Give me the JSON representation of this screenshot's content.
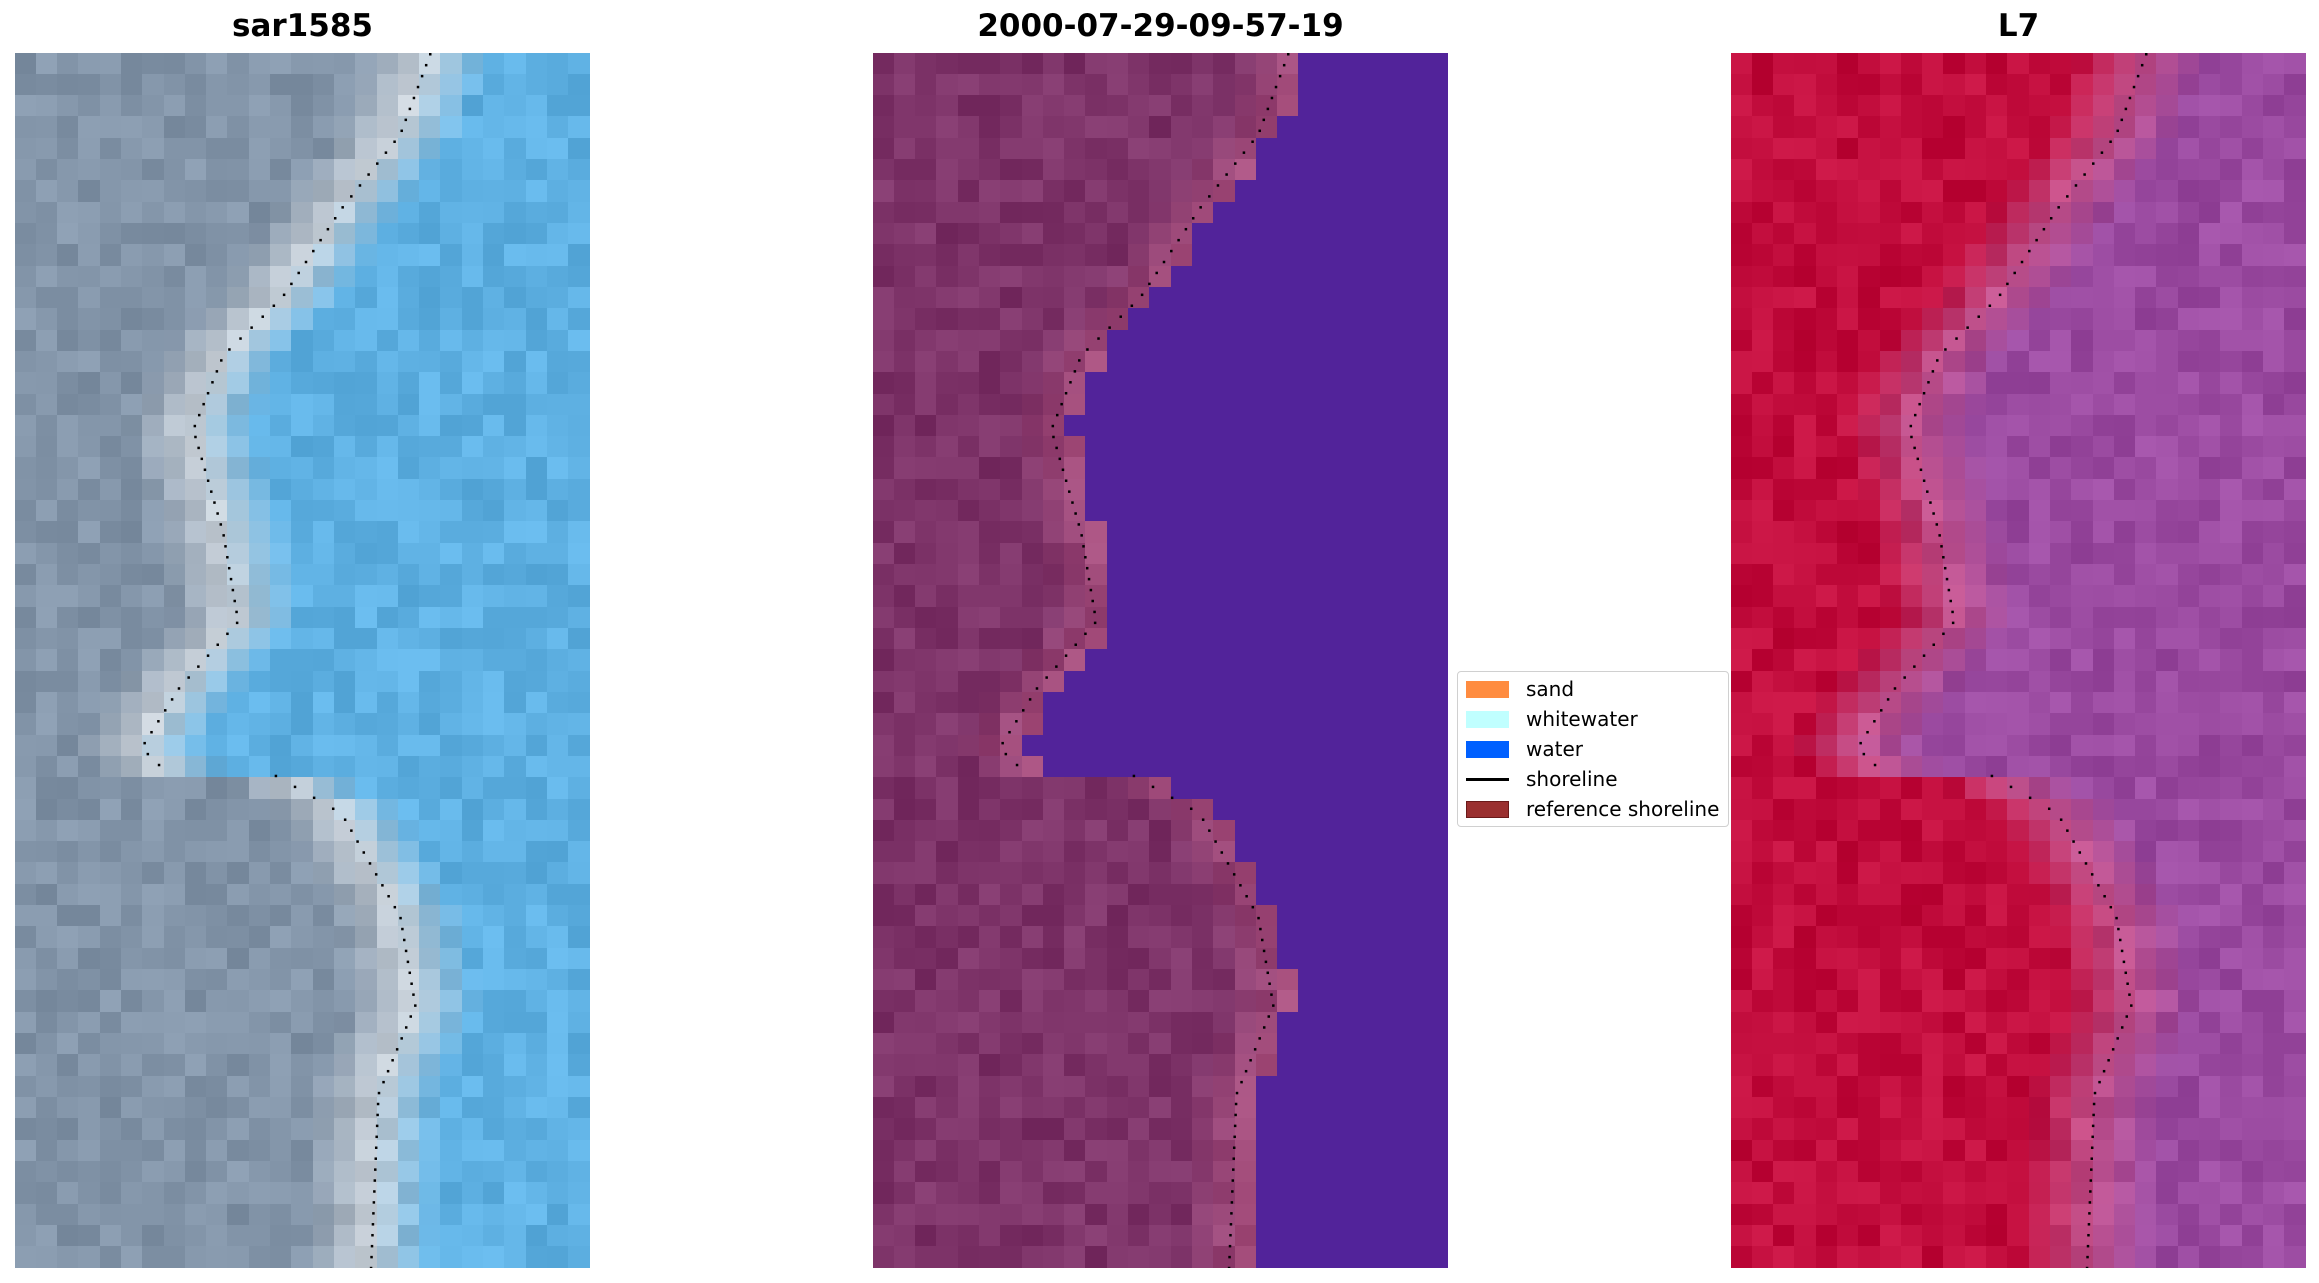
{
  "panels": [
    {
      "title": "sar1585",
      "land_color": "#8294a8",
      "shore_color": "#c8d0d8",
      "water_color": "#5eb0e2"
    },
    {
      "title": "2000-07-29-09-57-19",
      "land_color": "#7d3368",
      "shore_color": "#a8507e",
      "water_color": "#52239a"
    },
    {
      "title": "L7",
      "land_color": "#c10c3c",
      "shore_color": "#c0508a",
      "water_color": "#9a4aa0"
    }
  ],
  "legend": {
    "items": [
      {
        "label": "sand",
        "color": "#ff8c40",
        "kind": "patch"
      },
      {
        "label": "whitewater",
        "color": "#c0ffff",
        "kind": "patch"
      },
      {
        "label": "water",
        "color": "#0060ff",
        "kind": "patch"
      },
      {
        "label": "shoreline",
        "color": "#000000",
        "kind": "line"
      },
      {
        "label": "reference shoreline",
        "color": "#9a3030",
        "kind": "patch"
      }
    ]
  }
}
